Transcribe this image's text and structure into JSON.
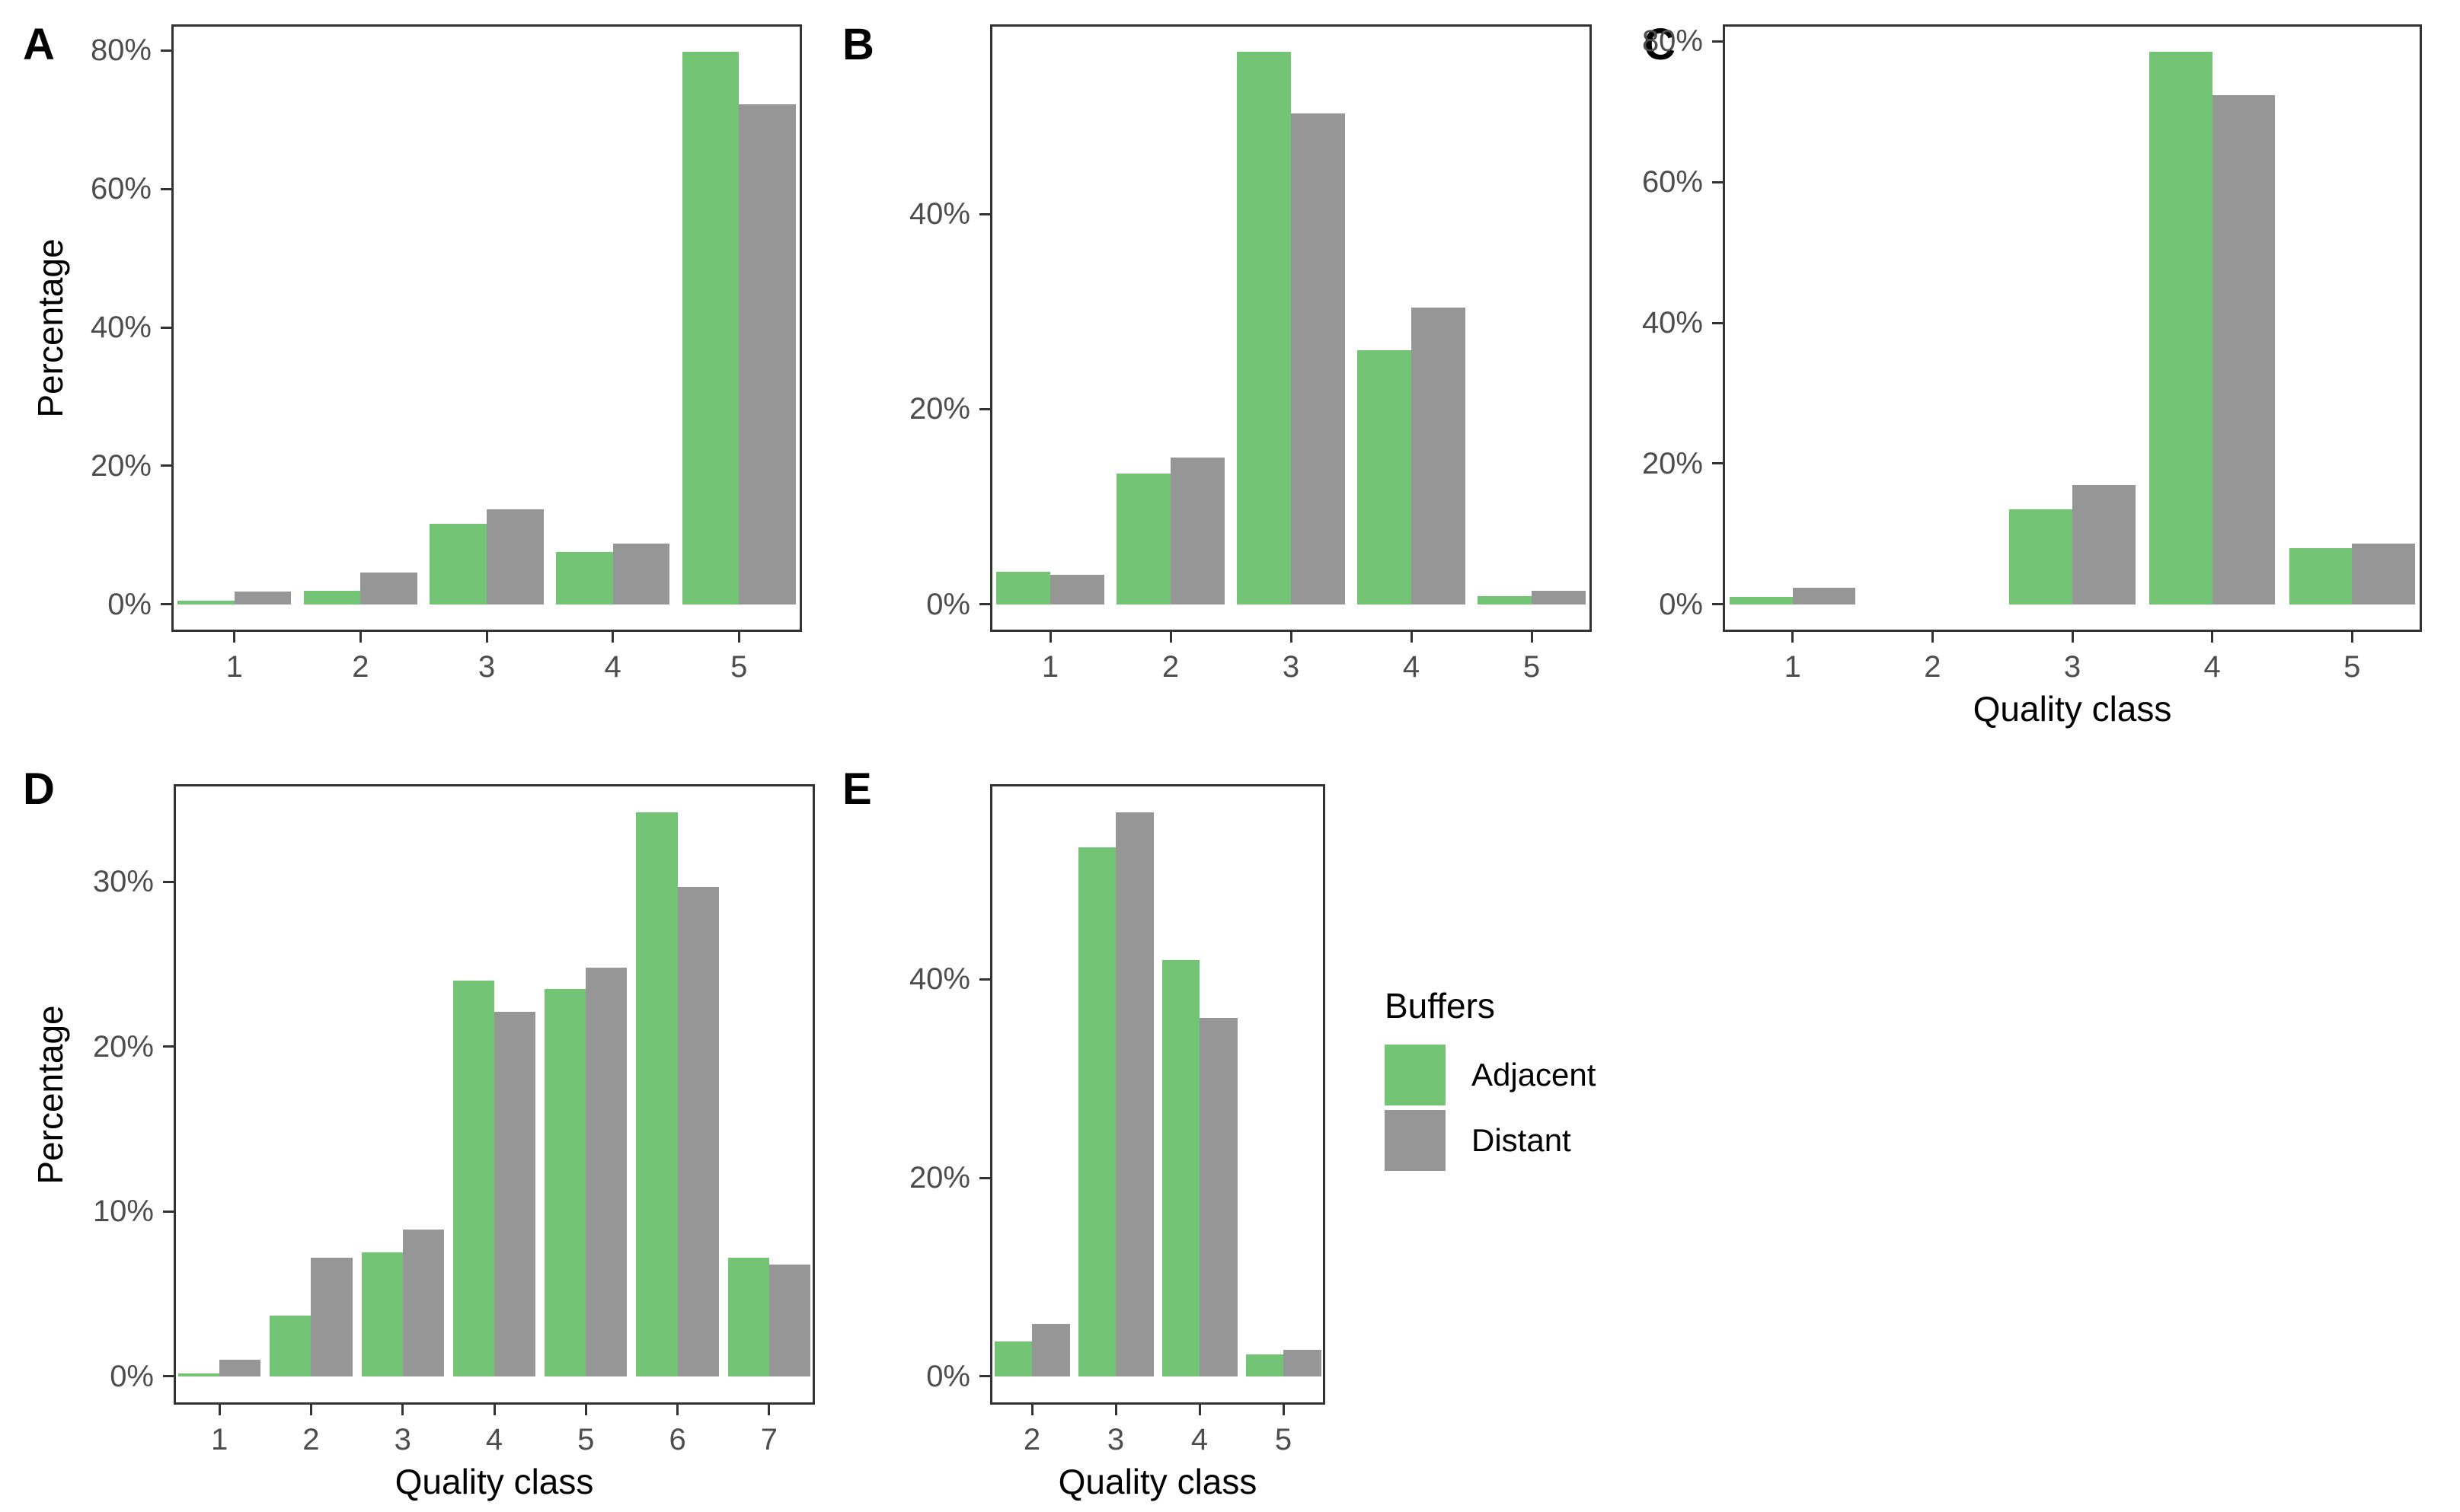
{
  "figure": {
    "background": "#ffffff",
    "border_color": "#333333",
    "tick_text_color": "#4d4d4d"
  },
  "legend": {
    "title": "Buffers",
    "items": [
      {
        "label": "Adjacent",
        "color": "#74C476"
      },
      {
        "label": "Distant",
        "color": "#969696"
      }
    ]
  },
  "chart_data": [
    {
      "type": "bar",
      "panel": "A",
      "categories": [
        "1",
        "2",
        "3",
        "4",
        "5"
      ],
      "series": [
        {
          "name": "Adjacent",
          "values": [
            0.5,
            1.9,
            11.6,
            7.6,
            79.8
          ]
        },
        {
          "name": "Distant",
          "values": [
            1.8,
            4.6,
            13.7,
            8.8,
            72.2
          ]
        }
      ],
      "ylabel": "Percentage",
      "xlabel": "",
      "yticks": [
        0,
        20,
        40,
        60,
        80
      ],
      "ytick_labels": [
        "0%",
        "20%",
        "40%",
        "60%",
        "80%"
      ],
      "ylim": [
        0,
        84
      ],
      "grid": false,
      "legend_position": "none"
    },
    {
      "type": "bar",
      "panel": "B",
      "categories": [
        "1",
        "2",
        "3",
        "4",
        "5"
      ],
      "series": [
        {
          "name": "Adjacent",
          "values": [
            3.3,
            13.4,
            56.6,
            26.0,
            0.8
          ]
        },
        {
          "name": "Distant",
          "values": [
            3.0,
            15.0,
            50.3,
            30.4,
            1.4
          ]
        }
      ],
      "ylabel": "",
      "xlabel": "",
      "yticks": [
        0,
        20,
        40
      ],
      "ytick_labels": [
        "0%",
        "20%",
        "40%"
      ],
      "ylim": [
        0,
        59.5
      ],
      "grid": false,
      "legend_position": "none"
    },
    {
      "type": "bar",
      "panel": "C",
      "categories": [
        "1",
        "2",
        "3",
        "4",
        "5"
      ],
      "series": [
        {
          "name": "Adjacent",
          "values": [
            1.0,
            0,
            13.5,
            78.5,
            8.0
          ]
        },
        {
          "name": "Distant",
          "values": [
            2.4,
            0,
            17.0,
            72.4,
            8.6
          ]
        }
      ],
      "ylabel": "",
      "xlabel": "Quality class",
      "yticks": [
        0,
        20,
        40,
        60,
        80
      ],
      "ytick_labels": [
        "0%",
        "20%",
        "40%",
        "60%",
        "80%"
      ],
      "ylim": [
        0,
        82.5
      ],
      "grid": false,
      "legend_position": "none"
    },
    {
      "type": "bar",
      "panel": "D",
      "categories": [
        "1",
        "2",
        "3",
        "4",
        "5",
        "6",
        "7"
      ],
      "series": [
        {
          "name": "Adjacent",
          "values": [
            0.2,
            3.7,
            7.5,
            24.0,
            23.5,
            34.2,
            7.2
          ]
        },
        {
          "name": "Distant",
          "values": [
            1.0,
            7.2,
            8.9,
            22.1,
            24.8,
            29.7,
            6.8
          ]
        }
      ],
      "ylabel": "Percentage",
      "xlabel": "Quality class",
      "yticks": [
        0,
        10,
        20,
        30
      ],
      "ytick_labels": [
        "0%",
        "10%",
        "20%",
        "30%"
      ],
      "ylim": [
        0,
        36
      ],
      "grid": false,
      "legend_position": "none"
    },
    {
      "type": "bar",
      "panel": "E",
      "categories": [
        "2",
        "3",
        "4",
        "5"
      ],
      "series": [
        {
          "name": "Adjacent",
          "values": [
            3.5,
            53.3,
            41.9,
            2.2
          ]
        },
        {
          "name": "Distant",
          "values": [
            5.3,
            56.8,
            36.1,
            2.7
          ]
        }
      ],
      "ylabel": "",
      "xlabel": "Quality class",
      "yticks": [
        0,
        20,
        40
      ],
      "ytick_labels": [
        "0%",
        "20%",
        "40%"
      ],
      "ylim": [
        0,
        59.7
      ],
      "grid": false,
      "legend_position": "right"
    }
  ]
}
